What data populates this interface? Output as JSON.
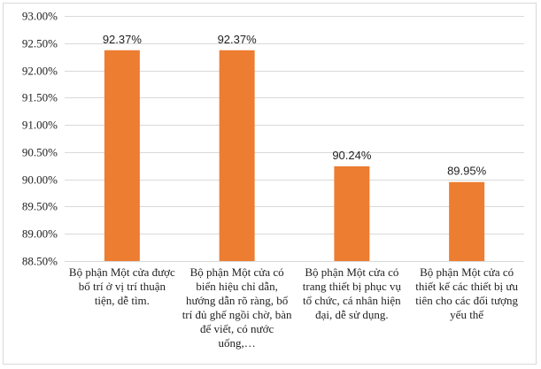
{
  "chart_data": {
    "type": "bar",
    "title": "",
    "xlabel": "",
    "ylabel": "",
    "categories": [
      "Bộ phận Một cửa được bố trí ở vị trí thuận tiện, dễ tìm.",
      "Bộ phận Một cửa có biển hiệu chỉ dẫn, hướng dẫn rõ ràng, bố trí đủ ghế ngồi chờ, bàn để viết, có nước uống,…",
      "Bộ phận Một cửa có trang thiết bị phục vụ tổ chức, cá nhân hiện đại, dễ sử dụng.",
      "Bộ phận Một cửa có thiết kế các thiết bị ưu tiên cho các đối tượng yếu thế"
    ],
    "values": [
      92.37,
      92.37,
      90.24,
      89.95
    ],
    "data_labels": [
      "92.37%",
      "92.37%",
      "90.24%",
      "89.95%"
    ],
    "ylim": [
      88.5,
      93.0
    ],
    "yticks": [
      88.5,
      89.0,
      89.5,
      90.0,
      90.5,
      91.0,
      91.5,
      92.0,
      92.5,
      93.0
    ],
    "ytick_labels": [
      "88.50%",
      "89.00%",
      "89.50%",
      "90.00%",
      "90.50%",
      "91.00%",
      "91.50%",
      "92.00%",
      "92.50%",
      "93.00%"
    ],
    "grid": true,
    "legend": "none",
    "bar_color": "#ED7D31",
    "grid_color": "#d9d9d9"
  }
}
